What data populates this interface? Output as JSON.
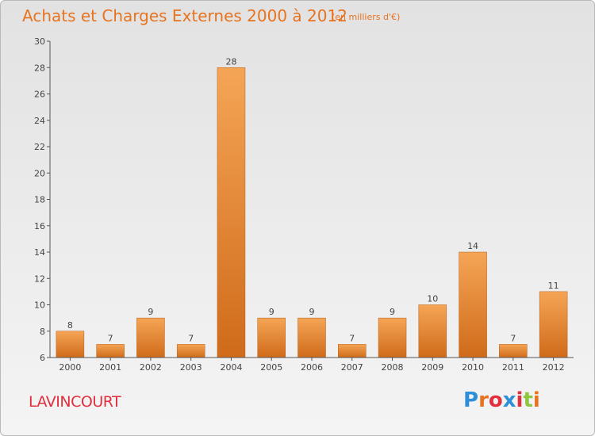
{
  "header": {
    "title": "Achats et Charges Externes 2000 à 2012",
    "subtitle": "(en milliers d'€)"
  },
  "footer": {
    "commune": "LAVINCOURT",
    "logo_text": "Proxiti",
    "logo_colors": [
      "#2e8fd8",
      "#e8731f",
      "#e0303e",
      "#2e8fd8",
      "#e0303e",
      "#8dc63f",
      "#e8731f"
    ]
  },
  "colors": {
    "bar_top": "#f5a556",
    "bar_bottom": "#cf6b1a",
    "accent": "#e8731f",
    "commune": "#e0303e",
    "axis": "#555555"
  },
  "chart_data": {
    "type": "bar",
    "title": "Achats et Charges Externes 2000 à 2012",
    "subtitle": "(en milliers d'€)",
    "xlabel": "",
    "ylabel": "",
    "categories": [
      "2000",
      "2001",
      "2002",
      "2003",
      "2004",
      "2005",
      "2006",
      "2007",
      "2008",
      "2009",
      "2010",
      "2011",
      "2012"
    ],
    "values": [
      8,
      7,
      9,
      7,
      28,
      9,
      9,
      7,
      9,
      10,
      14,
      7,
      11
    ],
    "ylim": [
      6,
      30
    ],
    "yticks": [
      6,
      8,
      10,
      12,
      14,
      16,
      18,
      20,
      22,
      24,
      26,
      28,
      30
    ],
    "grid": false,
    "data_labels": true
  }
}
